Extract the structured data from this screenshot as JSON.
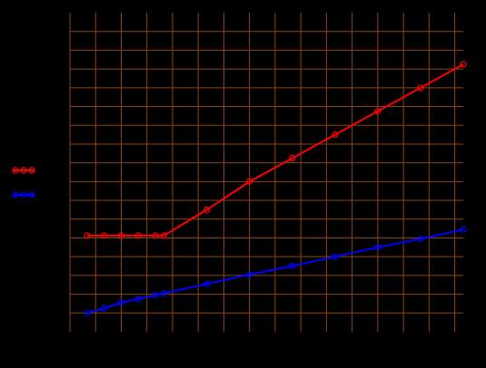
{
  "chart_data": {
    "type": "line",
    "title": "",
    "xlabel": "",
    "ylabel": "",
    "xlim": [
      -0.2,
      9
    ],
    "ylim": [
      -0.4,
      6.4
    ],
    "x_grid": [
      -0.2,
      0.4,
      1,
      1.6,
      2.2,
      2.8,
      3.4,
      4.0,
      4.6,
      5.2,
      5.8,
      6.4,
      7.0,
      7.6,
      8.2,
      8.8
    ],
    "y_grid": [
      0,
      0.4,
      0.8,
      1.2,
      1.6,
      2.0,
      2.4,
      2.8,
      3.2,
      3.6,
      4.0,
      4.4,
      4.8,
      5.2,
      5.6,
      6.0
    ],
    "grid": true,
    "grid_color": "#8b4513",
    "background": "#000000",
    "legend": {
      "placement": "left"
    },
    "series": [
      {
        "color": "#ff0000",
        "marker": "circle",
        "x": [
          0.2,
          0.6,
          1.0,
          1.4,
          1.8,
          2.0,
          3.0,
          4.0,
          5.0,
          6.0,
          7.0,
          8.0,
          9.0
        ],
        "y": [
          1.65,
          1.65,
          1.65,
          1.65,
          1.65,
          1.65,
          2.2,
          2.8,
          3.3,
          3.8,
          4.3,
          4.8,
          5.3
        ]
      },
      {
        "color": "#0000ff",
        "marker": "circle",
        "x": [
          0.2,
          0.6,
          1.0,
          1.4,
          1.8,
          2.0,
          3.0,
          4.0,
          5.0,
          6.0,
          7.0,
          8.0,
          9.0
        ],
        "y": [
          0.0,
          0.1,
          0.22,
          0.3,
          0.38,
          0.42,
          0.62,
          0.82,
          1.0,
          1.2,
          1.4,
          1.58,
          1.78
        ]
      }
    ]
  }
}
